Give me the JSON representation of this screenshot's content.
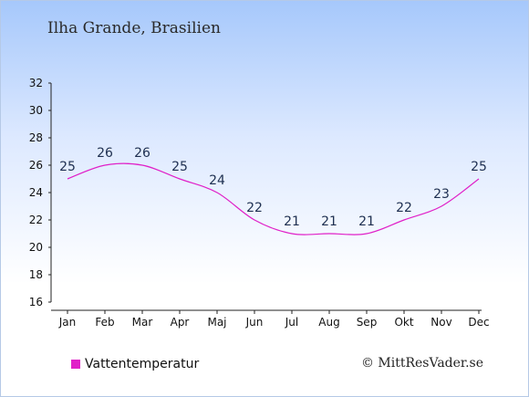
{
  "chart_data": {
    "type": "line",
    "title": "Ilha Grande, Brasilien",
    "categories": [
      "Jan",
      "Feb",
      "Mar",
      "Apr",
      "Maj",
      "Jun",
      "Jul",
      "Aug",
      "Sep",
      "Okt",
      "Nov",
      "Dec"
    ],
    "series": [
      {
        "name": "Vattentemperatur",
        "values": [
          25,
          26,
          26,
          25,
          24,
          22,
          21,
          21,
          21,
          22,
          23,
          25
        ],
        "color": "#e020c8"
      }
    ],
    "ylim": [
      16,
      32
    ],
    "yticks": [
      16,
      18,
      20,
      22,
      24,
      26,
      28,
      30,
      32
    ],
    "xlabel": "",
    "ylabel": "",
    "grid": false,
    "legend_position": "bottom-left"
  },
  "credit": "© MittResVader.se"
}
